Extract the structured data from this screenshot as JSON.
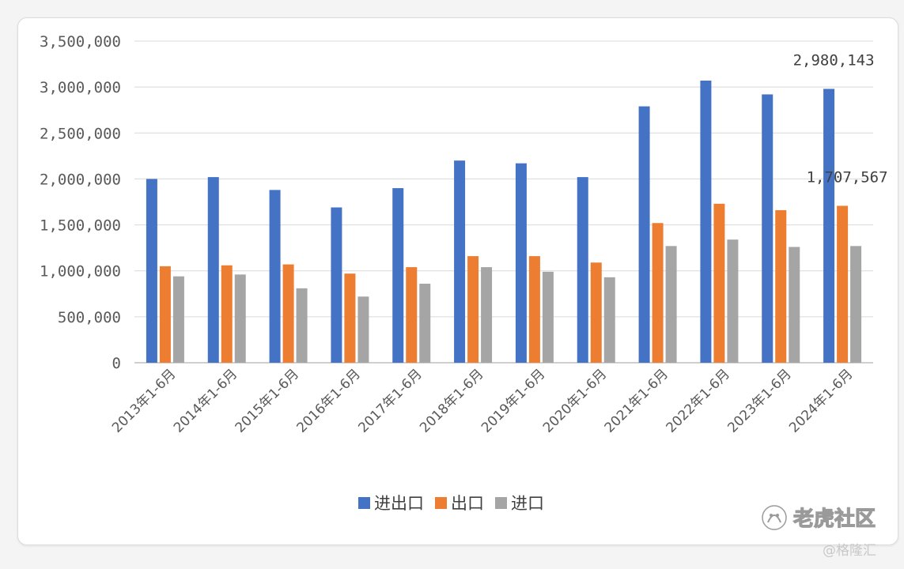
{
  "chart_data": {
    "type": "bar",
    "categories": [
      "2013年1-6月",
      "2014年1-6月",
      "2015年1-6月",
      "2016年1-6月",
      "2017年1-6月",
      "2018年1-6月",
      "2019年1-6月",
      "2020年1-6月",
      "2021年1-6月",
      "2022年1-6月",
      "2023年1-6月",
      "2024年1-6月"
    ],
    "series": [
      {
        "name": "进出口",
        "color": "#4472c4",
        "values": [
          2000000,
          2020000,
          1880000,
          1690000,
          1900000,
          2200000,
          2170000,
          2020000,
          2790000,
          3070000,
          2920000,
          2980143
        ]
      },
      {
        "name": "出口",
        "color": "#ed7d31",
        "values": [
          1050000,
          1060000,
          1070000,
          970000,
          1040000,
          1160000,
          1160000,
          1090000,
          1520000,
          1730000,
          1660000,
          1707567
        ]
      },
      {
        "name": "进口",
        "color": "#a5a5a5",
        "values": [
          940000,
          960000,
          810000,
          720000,
          860000,
          1040000,
          990000,
          930000,
          1270000,
          1340000,
          1260000,
          1270000
        ]
      }
    ],
    "ylim": [
      0,
      3500000
    ],
    "yticks": [
      "0",
      "500,000",
      "1,000,000",
      "1,500,000",
      "2,000,000",
      "2,500,000",
      "3,000,000",
      "3,500,000"
    ],
    "data_labels": [
      {
        "category_index": 11,
        "series_index": 0,
        "text": "2,980,143"
      },
      {
        "category_index": 11,
        "series_index": 1,
        "text": "1,707,567"
      }
    ],
    "grid": true,
    "legend_position": "bottom"
  },
  "watermark": {
    "main": "老虎社区",
    "secondary": "@格隆汇",
    "icon": "tiger-paw-icon"
  }
}
